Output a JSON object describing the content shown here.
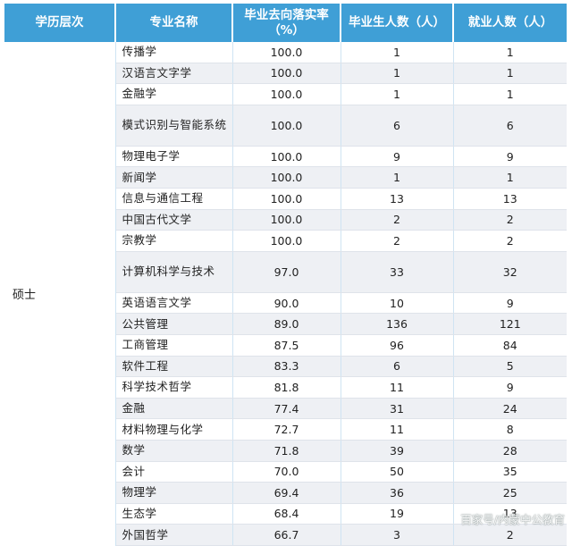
{
  "table": {
    "headers": [
      "学历层次",
      "专业名称",
      "毕业去向落实率\n（%）",
      "毕业生人数（人）",
      "就业人数（人）"
    ],
    "level": "硕士",
    "rows": [
      {
        "major": "传播学",
        "rate": "100.0",
        "grads": "1",
        "employed": "1"
      },
      {
        "major": "汉语言文字学",
        "rate": "100.0",
        "grads": "1",
        "employed": "1"
      },
      {
        "major": "金融学",
        "rate": "100.0",
        "grads": "1",
        "employed": "1"
      },
      {
        "major": "模式识别与智能系统",
        "rate": "100.0",
        "grads": "6",
        "employed": "6"
      },
      {
        "major": "物理电子学",
        "rate": "100.0",
        "grads": "9",
        "employed": "9"
      },
      {
        "major": "新闻学",
        "rate": "100.0",
        "grads": "1",
        "employed": "1"
      },
      {
        "major": "信息与通信工程",
        "rate": "100.0",
        "grads": "13",
        "employed": "13"
      },
      {
        "major": "中国古代文学",
        "rate": "100.0",
        "grads": "2",
        "employed": "2"
      },
      {
        "major": "宗教学",
        "rate": "100.0",
        "grads": "2",
        "employed": "2"
      },
      {
        "major": "计算机科学与技术",
        "rate": "97.0",
        "grads": "33",
        "employed": "32"
      },
      {
        "major": "英语语言文学",
        "rate": "90.0",
        "grads": "10",
        "employed": "9"
      },
      {
        "major": "公共管理",
        "rate": "89.0",
        "grads": "136",
        "employed": "121"
      },
      {
        "major": "工商管理",
        "rate": "87.5",
        "grads": "96",
        "employed": "84"
      },
      {
        "major": "软件工程",
        "rate": "83.3",
        "grads": "6",
        "employed": "5"
      },
      {
        "major": "科学技术哲学",
        "rate": "81.8",
        "grads": "11",
        "employed": "9"
      },
      {
        "major": "金融",
        "rate": "77.4",
        "grads": "31",
        "employed": "24"
      },
      {
        "major": "材料物理与化学",
        "rate": "72.7",
        "grads": "11",
        "employed": "8"
      },
      {
        "major": "数学",
        "rate": "71.8",
        "grads": "39",
        "employed": "28"
      },
      {
        "major": "会计",
        "rate": "70.0",
        "grads": "50",
        "employed": "35"
      },
      {
        "major": "物理学",
        "rate": "69.4",
        "grads": "36",
        "employed": "25"
      },
      {
        "major": "生态学",
        "rate": "68.4",
        "grads": "19",
        "employed": "13"
      },
      {
        "major": "外国哲学",
        "rate": "66.7",
        "grads": "3",
        "employed": "2"
      }
    ]
  },
  "watermark": "百家号/内蒙中公教育",
  "colors": {
    "header_bg": "#3f9fd6",
    "stripe_bg": "#eef0f4"
  }
}
